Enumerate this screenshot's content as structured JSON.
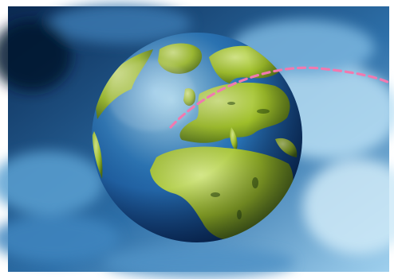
{
  "image": {
    "subject": "globe-over-clouds",
    "colors": {
      "border": "#ffffff",
      "sky_dark": "#0b2a52",
      "sky_mid": "#2d6fa8",
      "sky_light": "#9fd0ee",
      "ocean_dark": "#0a2f6d",
      "ocean_mid": "#2a76b8",
      "ocean_light": "#9ad3f0",
      "land_light": "#d5e88a",
      "land_mid": "#9fbf2a",
      "land_dark": "#4a6a14",
      "route": "#f07ab0"
    },
    "route_style": "dashed"
  }
}
